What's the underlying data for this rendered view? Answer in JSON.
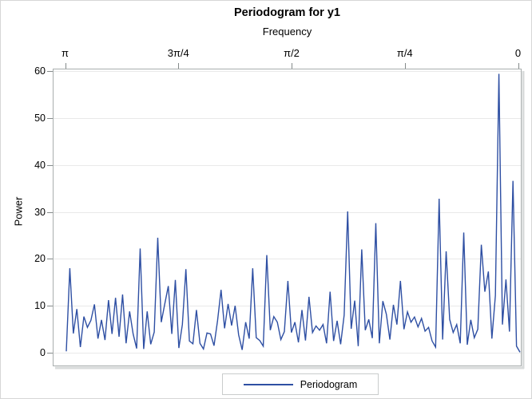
{
  "title": "Periodogram for y1",
  "legend": {
    "label": "Periodogram"
  },
  "colors": {
    "line": "#2e4fa3",
    "grid": "#e9e9e9",
    "box_border": "#a9aeae",
    "box_shadow": "#d8dbdb",
    "tick": "#848a8a"
  },
  "chart_data": {
    "type": "line",
    "title": "Periodogram for y1",
    "xlabel": "Frequency",
    "ylabel": "Power",
    "x_axis_position": "top",
    "x_axis_reversed": true,
    "x_tick_labels": [
      "π",
      "3π/4",
      "π/2",
      "π/4",
      "0"
    ],
    "x_range_note": "frequency runs from pi (left) to 0 (right)",
    "y_tick_labels": [
      "0",
      "10",
      "20",
      "30",
      "40",
      "50",
      "60"
    ],
    "y_ticks": [
      0,
      10,
      20,
      30,
      40,
      50,
      60
    ],
    "ylim": [
      0,
      60
    ],
    "grid": true,
    "legend_position": "bottom-center",
    "series": [
      {
        "name": "Periodogram",
        "values": [
          0.3,
          18,
          4.1,
          9.3,
          1.2,
          7.7,
          5.4,
          6.9,
          10.3,
          3,
          7,
          2.7,
          11.2,
          4,
          11.7,
          3.4,
          12.4,
          2,
          8.8,
          4,
          0.9,
          22.2,
          0.8,
          8.8,
          1.8,
          4.4,
          24.5,
          6.5,
          10.4,
          14.2,
          4,
          15.5,
          1,
          6,
          17.8,
          2.5,
          1.9,
          9.1,
          2,
          0.8,
          4.2,
          4,
          1.5,
          6.8,
          13.4,
          5.2,
          10.4,
          5.8,
          10,
          3.8,
          0.6,
          6.5,
          3,
          18,
          3.2,
          2.6,
          1.4,
          20.8,
          4.8,
          7.7,
          6.5,
          2.8,
          4.5,
          15.3,
          4.3,
          6.5,
          2.2,
          9.1,
          2.6,
          11.9,
          4.3,
          5.7,
          4.8,
          6,
          2,
          13,
          2.5,
          6.8,
          1.8,
          8,
          30.1,
          5.1,
          11.1,
          1.4,
          22,
          4.8,
          7.1,
          3.1,
          27.6,
          2,
          11,
          8.2,
          2.8,
          10.2,
          6,
          15.3,
          5,
          8.7,
          6.5,
          7.6,
          5.5,
          7.3,
          4.6,
          5.4,
          2.5,
          1.2,
          32.8,
          2.8,
          21.6,
          7.1,
          4.3,
          6,
          2,
          25.6,
          1.7,
          7,
          3.2,
          5,
          23,
          13,
          17.3,
          3,
          12.2,
          59.4,
          6,
          15.6,
          4.5,
          36.6,
          1.4,
          0.1
        ]
      }
    ]
  }
}
